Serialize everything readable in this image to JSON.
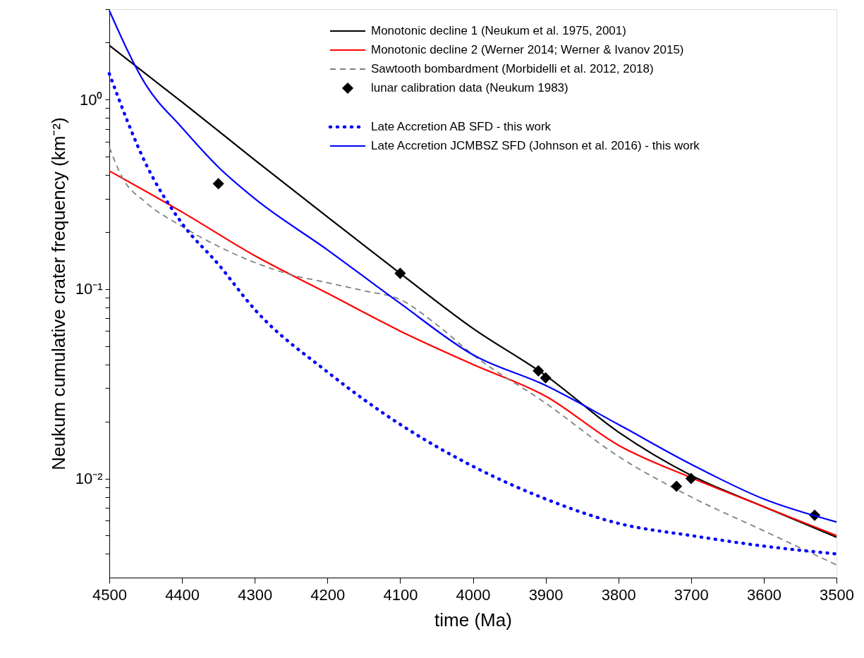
{
  "chart_data": {
    "type": "line",
    "xlabel": "time (Ma)",
    "ylabel": "Neukum cumulative crater frequency (km⁻²)",
    "xlim": [
      4500,
      3500
    ],
    "xticks": [
      4500,
      4400,
      4300,
      4200,
      4100,
      4000,
      3900,
      3800,
      3700,
      3600,
      3500
    ],
    "ylim": [
      0.003,
      3.0
    ],
    "yticks": [
      {
        "value": 0.004,
        "label": null
      },
      {
        "value": 0.005,
        "label": null
      },
      {
        "value": 0.006,
        "label": null
      },
      {
        "value": 0.007,
        "label": null
      },
      {
        "value": 0.008,
        "label": null
      },
      {
        "value": 0.009,
        "label": null
      },
      {
        "value": 0.01,
        "label": "10⁻²"
      },
      {
        "value": 0.02,
        "label": null
      },
      {
        "value": 0.03,
        "label": null
      },
      {
        "value": 0.04,
        "label": null
      },
      {
        "value": 0.05,
        "label": null
      },
      {
        "value": 0.06,
        "label": null
      },
      {
        "value": 0.07,
        "label": null
      },
      {
        "value": 0.08,
        "label": null
      },
      {
        "value": 0.09,
        "label": null
      },
      {
        "value": 0.1,
        "label": "10⁻¹"
      },
      {
        "value": 0.2,
        "label": null
      },
      {
        "value": 0.3,
        "label": null
      },
      {
        "value": 0.4,
        "label": null
      },
      {
        "value": 0.5,
        "label": null
      },
      {
        "value": 0.6,
        "label": null
      },
      {
        "value": 0.7,
        "label": null
      },
      {
        "value": 0.8,
        "label": null
      },
      {
        "value": 0.9,
        "label": null
      },
      {
        "value": 1,
        "label": "10⁰"
      },
      {
        "value": 2,
        "label": null
      },
      {
        "value": 3,
        "label": null
      }
    ],
    "log": "y",
    "grid": false,
    "legend": "top right",
    "series": [
      {
        "name": "Monotonic decline 1 (Neukum et al. 1975, 2001)",
        "color": "#000000",
        "line_style": "solid",
        "x": [
          4500,
          4400,
          4300,
          4200,
          4100,
          4000,
          3900,
          3800,
          3700,
          3600,
          3500
        ],
        "values": [
          1.93,
          0.97,
          0.48,
          0.24,
          0.121,
          0.062,
          0.035,
          0.0176,
          0.0104,
          0.0071,
          0.0049
        ]
      },
      {
        "name": "Monotonic decline 2 (Werner 2014; Werner & Ivanov 2015)",
        "color": "#ff0000",
        "line_style": "solid",
        "x": [
          4500,
          4400,
          4300,
          4200,
          4100,
          4000,
          3900,
          3800,
          3700,
          3600,
          3500
        ],
        "values": [
          0.42,
          0.255,
          0.15,
          0.095,
          0.06,
          0.04,
          0.0272,
          0.015,
          0.0101,
          0.0071,
          0.005
        ]
      },
      {
        "name": "Sawtooth bombardment (Morbidelli et al. 2012, 2018)",
        "color": "#808080",
        "line_style": "dashed",
        "x": [
          4500,
          4482,
          4450,
          4400,
          4350,
          4300,
          4250,
          4200,
          4150,
          4100,
          4050,
          4000,
          3900,
          3800,
          3700,
          3600,
          3500
        ],
        "values": [
          0.56,
          0.387,
          0.287,
          0.214,
          0.168,
          0.138,
          0.119,
          0.108,
          0.098,
          0.088,
          0.065,
          0.045,
          0.025,
          0.0131,
          0.008,
          0.0053,
          0.0035
        ]
      },
      {
        "name": "lunar calibration data (Neukum 1983)",
        "color": "#000000",
        "type": "scatter",
        "marker": "diamond",
        "x": [
          4350,
          4100,
          3910,
          3900,
          3720,
          3700,
          3530
        ],
        "values": [
          0.36,
          0.121,
          0.037,
          0.034,
          0.0091,
          0.01,
          0.0064
        ]
      },
      {
        "name": "Late Accretion AB SFD - this work",
        "color": "#0000ff",
        "line_style": "dotted",
        "x": [
          4500,
          4450,
          4400,
          4350,
          4300,
          4200,
          4100,
          4000,
          3900,
          3800,
          3700,
          3600,
          3500
        ],
        "values": [
          1.37,
          0.46,
          0.222,
          0.135,
          0.078,
          0.0365,
          0.0193,
          0.0116,
          0.0078,
          0.0058,
          0.005,
          0.0044,
          0.004
        ]
      },
      {
        "name": "Late Accretion JCMBSZ SFD (Johnson et al. 2016) - this work",
        "color": "#0000ff",
        "line_style": "solid",
        "x": [
          4500,
          4450,
          4400,
          4350,
          4300,
          4200,
          4100,
          4000,
          3900,
          3800,
          3700,
          3600,
          3500
        ],
        "values": [
          2.95,
          1.2,
          0.71,
          0.44,
          0.3,
          0.161,
          0.084,
          0.045,
          0.031,
          0.0193,
          0.0119,
          0.0078,
          0.0059
        ]
      }
    ]
  }
}
